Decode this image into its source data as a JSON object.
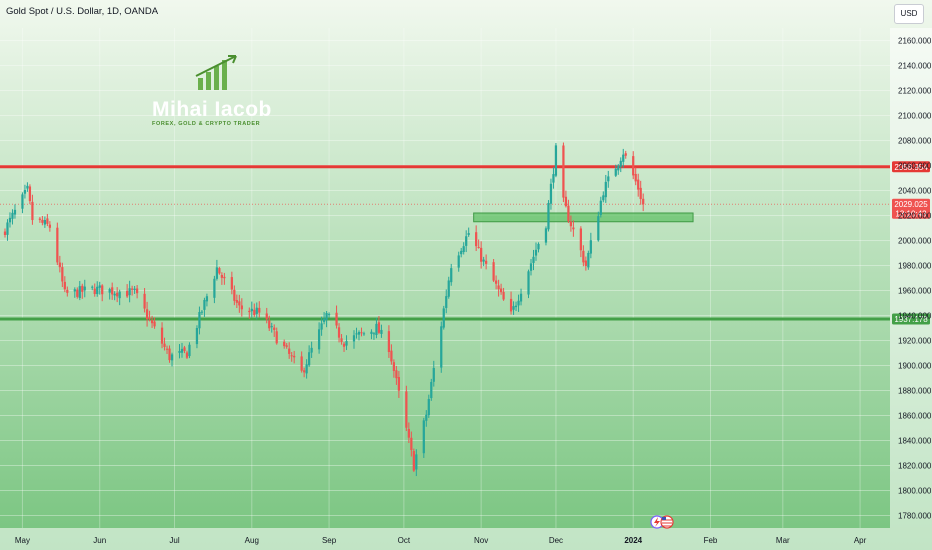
{
  "header": {
    "symbol": "Gold Spot / U.S. Dollar, 1D, OANDA",
    "currency": "USD"
  },
  "logo": {
    "name": "Mihai Iacob",
    "tagline": "FOREX, GOLD & CRYPTO TRADER"
  },
  "colors": {
    "background_top": "#f1f8ee",
    "background_bottom": "#77c47e",
    "bull": "#26a69a",
    "bear": "#ef5350",
    "resistance": "#e53935",
    "support": "#43a047",
    "zone": "#5cbf63"
  },
  "chart_data": {
    "type": "candlestick",
    "title": "Gold Spot / U.S. Dollar, 1D, OANDA",
    "ylim": [
      1770,
      2170
    ],
    "y_ticks": [
      1780,
      1800,
      1820,
      1840,
      1860,
      1880,
      1900,
      1920,
      1940,
      1960,
      1980,
      2000,
      2020,
      2040,
      2060,
      2080,
      2100,
      2120,
      2140,
      2160
    ],
    "y_tick_labels": [
      "1780.000",
      "1800.000",
      "1820.000",
      "1840.000",
      "1860.000",
      "1880.000",
      "1900.000",
      "1920.000",
      "1940.000",
      "1960.000",
      "1980.000",
      "2000.000",
      "2020.000",
      "2040.000",
      "2060.000",
      "2080.000",
      "2100.000",
      "2120.000",
      "2140.000",
      "2160.000"
    ],
    "xlim": [
      "2023-04-22",
      "2024-04-13"
    ],
    "x_ticks": [
      {
        "date": "2023-05-01",
        "label": "May"
      },
      {
        "date": "2023-06-01",
        "label": "Jun"
      },
      {
        "date": "2023-07-01",
        "label": "Jul"
      },
      {
        "date": "2023-08-01",
        "label": "Aug"
      },
      {
        "date": "2023-09-01",
        "label": "Sep"
      },
      {
        "date": "2023-10-01",
        "label": "Oct"
      },
      {
        "date": "2023-11-01",
        "label": "Nov"
      },
      {
        "date": "2023-12-01",
        "label": "Dec"
      },
      {
        "date": "2024-01-01",
        "label": "2024"
      },
      {
        "date": "2024-02-01",
        "label": "Feb"
      },
      {
        "date": "2024-03-01",
        "label": "Mar"
      },
      {
        "date": "2024-04-01",
        "label": "Apr"
      }
    ],
    "series_anchors": [
      {
        "date": "2023-04-22",
        "close": 2002
      },
      {
        "date": "2023-05-03",
        "close": 2040
      },
      {
        "date": "2023-05-05",
        "close": 2017
      },
      {
        "date": "2023-05-12",
        "close": 2011
      },
      {
        "date": "2023-05-18",
        "close": 1957
      },
      {
        "date": "2023-05-30",
        "close": 1961
      },
      {
        "date": "2023-06-15",
        "close": 1958
      },
      {
        "date": "2023-06-29",
        "close": 1907
      },
      {
        "date": "2023-07-06",
        "close": 1910
      },
      {
        "date": "2023-07-18",
        "close": 1978
      },
      {
        "date": "2023-07-27",
        "close": 1946
      },
      {
        "date": "2023-08-04",
        "close": 1942
      },
      {
        "date": "2023-08-21",
        "close": 1894
      },
      {
        "date": "2023-08-31",
        "close": 1940
      },
      {
        "date": "2023-09-07",
        "close": 1919
      },
      {
        "date": "2023-09-20",
        "close": 1930
      },
      {
        "date": "2023-09-25",
        "close": 1915
      },
      {
        "date": "2023-10-05",
        "close": 1820
      },
      {
        "date": "2023-10-10",
        "close": 1861
      },
      {
        "date": "2023-10-20",
        "close": 1981
      },
      {
        "date": "2023-10-27",
        "close": 2006
      },
      {
        "date": "2023-11-13",
        "close": 1940
      },
      {
        "date": "2023-11-27",
        "close": 2014
      },
      {
        "date": "2023-12-01",
        "close": 2072
      },
      {
        "date": "2023-12-04",
        "close": 2030
      },
      {
        "date": "2023-12-13",
        "close": 1980
      },
      {
        "date": "2023-12-20",
        "close": 2040
      },
      {
        "date": "2023-12-28",
        "close": 2071
      },
      {
        "date": "2024-01-03",
        "close": 2042
      },
      {
        "date": "2024-01-05",
        "close": 2029
      }
    ],
    "annotations": {
      "resistance_line": {
        "price": 2058.954,
        "label": "2058.954"
      },
      "support_line": {
        "price": 1937.178,
        "label": "1937.178"
      },
      "last_price": {
        "price": 2029.025,
        "label": "2029.025",
        "countdown": "13:10:43"
      },
      "demand_zone": {
        "from_date": "2023-10-29",
        "to_date": "2024-01-25",
        "low": 2015,
        "high": 2022
      }
    }
  }
}
